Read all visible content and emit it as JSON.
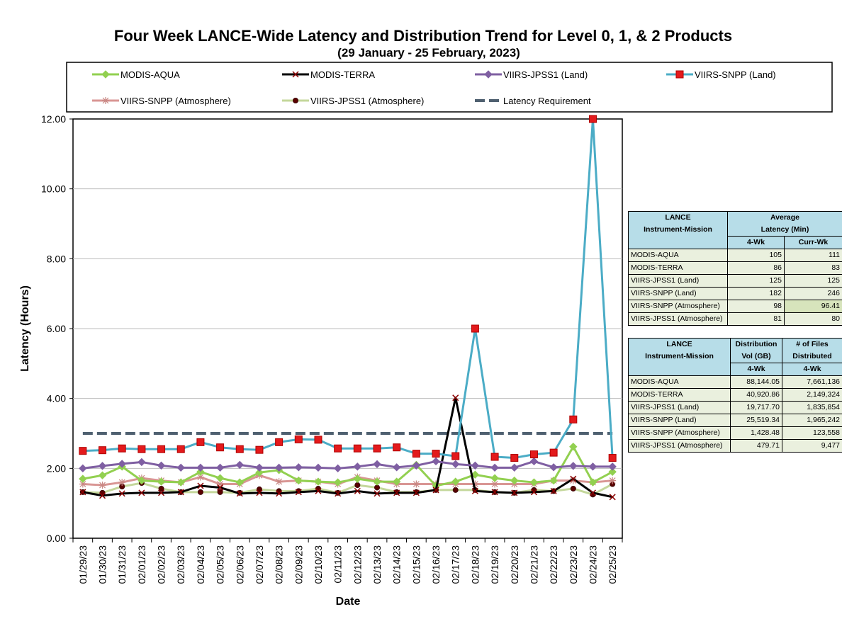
{
  "chart_data": {
    "type": "line",
    "title": "Four Week LANCE-Wide Latency and Distribution Trend for Level 0, 1, & 2 Products",
    "subtitle": "(29  January   - 25  February,  2023)",
    "xlabel": "Date",
    "ylabel": "Latency (Hours)",
    "ylim": [
      0,
      12
    ],
    "yticks": [
      "0.00",
      "2.00",
      "4.00",
      "6.00",
      "8.00",
      "10.00",
      "12.00"
    ],
    "grid": "horizontal",
    "legend": "top",
    "categories": [
      "01/29/23",
      "01/30/23",
      "01/31/23",
      "02/01/23",
      "02/02/23",
      "02/03/23",
      "02/04/23",
      "02/05/23",
      "02/06/23",
      "02/07/23",
      "02/08/23",
      "02/09/23",
      "02/10/23",
      "02/11/23",
      "02/12/23",
      "02/13/23",
      "02/14/23",
      "02/15/23",
      "02/16/23",
      "02/17/23",
      "02/18/23",
      "02/19/23",
      "02/20/23",
      "02/21/23",
      "02/22/23",
      "02/23/23",
      "02/24/23",
      "02/25/23"
    ],
    "series": [
      {
        "name": "MODIS-AQUA",
        "color": "#92d050",
        "marker": "diamond",
        "values": [
          1.7,
          1.8,
          2.05,
          1.65,
          1.62,
          1.6,
          1.9,
          1.72,
          1.6,
          1.88,
          1.95,
          1.65,
          1.62,
          1.6,
          1.7,
          1.62,
          1.62,
          2.1,
          1.5,
          1.62,
          1.82,
          1.72,
          1.65,
          1.6,
          1.65,
          2.62,
          1.6,
          1.9
        ]
      },
      {
        "name": "MODIS-TERRA",
        "color": "#000000",
        "marker": "x",
        "values": [
          1.32,
          1.22,
          1.28,
          1.3,
          1.3,
          1.32,
          1.5,
          1.45,
          1.28,
          1.3,
          1.28,
          1.32,
          1.35,
          1.28,
          1.35,
          1.28,
          1.3,
          1.3,
          1.38,
          4.02,
          1.35,
          1.32,
          1.3,
          1.32,
          1.35,
          1.7,
          1.3,
          1.18
        ]
      },
      {
        "name": "VIIRS-JPSS1 (Land)",
        "color": "#7f5fa2",
        "marker": "diamond",
        "values": [
          2.0,
          2.07,
          2.13,
          2.18,
          2.08,
          2.02,
          2.02,
          2.02,
          2.1,
          2.02,
          2.02,
          2.03,
          2.02,
          2.0,
          2.05,
          2.12,
          2.03,
          2.08,
          2.2,
          2.12,
          2.08,
          2.02,
          2.02,
          2.2,
          2.03,
          2.07,
          2.05,
          2.05
        ]
      },
      {
        "name": "VIIRS-SNPP (Land)",
        "color": "#4bacc6",
        "marker": "square",
        "values": [
          2.5,
          2.52,
          2.57,
          2.55,
          2.55,
          2.55,
          2.75,
          2.6,
          2.55,
          2.53,
          2.75,
          2.83,
          2.82,
          2.57,
          2.57,
          2.57,
          2.6,
          2.42,
          2.42,
          2.35,
          6.0,
          2.33,
          2.3,
          2.4,
          2.45,
          3.4,
          12.0,
          2.3
        ]
      },
      {
        "name": "VIIRS-SNPP (Atmosphere)",
        "color": "#d99694",
        "marker": "star",
        "values": [
          1.55,
          1.52,
          1.6,
          1.72,
          1.65,
          1.6,
          1.75,
          1.55,
          1.55,
          1.8,
          1.62,
          1.65,
          1.62,
          1.55,
          1.75,
          1.65,
          1.55,
          1.55,
          1.55,
          1.55,
          1.55,
          1.55,
          1.55,
          1.55,
          1.65,
          1.65,
          1.6,
          1.65
        ]
      },
      {
        "name": "VIIRS-JPSS1 (Atmosphere)",
        "color": "#c4d79b",
        "marker": "dot",
        "values": [
          1.32,
          1.3,
          1.48,
          1.58,
          1.42,
          1.32,
          1.32,
          1.32,
          1.3,
          1.4,
          1.35,
          1.35,
          1.42,
          1.3,
          1.52,
          1.45,
          1.32,
          1.32,
          1.38,
          1.38,
          1.38,
          1.32,
          1.3,
          1.38,
          1.35,
          1.42,
          1.25,
          1.55
        ]
      },
      {
        "name": "Latency Requirement",
        "color": "#4f6070",
        "marker": "none",
        "dashed": true,
        "values": [
          3,
          3,
          3,
          3,
          3,
          3,
          3,
          3,
          3,
          3,
          3,
          3,
          3,
          3,
          3,
          3,
          3,
          3,
          3,
          3,
          3,
          3,
          3,
          3,
          3,
          3,
          3,
          3
        ]
      }
    ]
  },
  "latency_table": {
    "header1": [
      "LANCE",
      "Average"
    ],
    "header2": [
      "Instrument-Mission",
      "Latency (Min)"
    ],
    "subheader": [
      "4-Wk",
      "Curr-Wk"
    ],
    "rows": [
      {
        "name": "MODIS-AQUA",
        "wk4": "105",
        "curr": "111"
      },
      {
        "name": "MODIS-TERRA",
        "wk4": "86",
        "curr": "83"
      },
      {
        "name": "VIIRS-JPSS1 (Land)",
        "wk4": "125",
        "curr": "125"
      },
      {
        "name": "VIIRS-SNPP (Land)",
        "wk4": "182",
        "curr": "246"
      },
      {
        "name": "VIIRS-SNPP (Atmosphere)",
        "wk4": "98",
        "curr": "96.41"
      },
      {
        "name": "VIIRS-JPSS1 (Atmosphere)",
        "wk4": "81",
        "curr": "80"
      }
    ]
  },
  "distribution_table": {
    "header1": [
      "LANCE",
      "Distribution",
      "# of Files"
    ],
    "header2": [
      "Instrument-Mission",
      "Vol (GB)",
      "Distributed"
    ],
    "subheader": [
      "4-Wk",
      "4-Wk"
    ],
    "rows": [
      {
        "name": "MODIS-AQUA",
        "vol": "88,144.05",
        "files": "7,661,136"
      },
      {
        "name": "MODIS-TERRA",
        "vol": "40,920.86",
        "files": "2,149,324"
      },
      {
        "name": "VIIRS-JPSS1 (Land)",
        "vol": "19,717.70",
        "files": "1,835,854"
      },
      {
        "name": "VIIRS-SNPP (Land)",
        "vol": "25,519.34",
        "files": "1,965,242"
      },
      {
        "name": "VIIRS-SNPP (Atmosphere)",
        "vol": "1,428.48",
        "files": "123,558"
      },
      {
        "name": "VIIRS-JPSS1 (Atmosphere)",
        "vol": "479.71",
        "files": "9,477"
      }
    ]
  }
}
